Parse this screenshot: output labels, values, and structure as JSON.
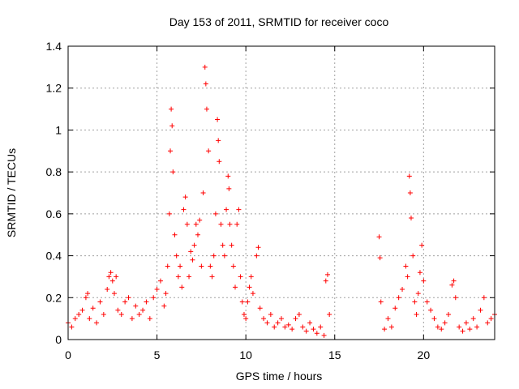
{
  "chart_data": {
    "type": "scatter",
    "title": "Day 153 of 2011, SRMTID for receiver coco",
    "xlabel": "GPS time / hours",
    "ylabel": "SRMTID / TECUs",
    "xlim": [
      0,
      24
    ],
    "ylim": [
      0,
      1.4
    ],
    "xticks": [
      0,
      5,
      10,
      15,
      20
    ],
    "xtick_labels": [
      "0",
      "5",
      "10",
      "15",
      "20"
    ],
    "yticks": [
      0,
      0.2,
      0.4,
      0.6,
      0.8,
      1,
      1.2,
      1.4
    ],
    "ytick_labels": [
      "0",
      "0.2",
      "0.4",
      "0.6",
      "0.8",
      "1",
      "1.2",
      "1.4"
    ],
    "grid": true,
    "marker": "plus",
    "color": "#ff0000",
    "series": [
      {
        "name": "SRMTID",
        "points": [
          [
            0.0,
            0.08
          ],
          [
            0.2,
            0.06
          ],
          [
            0.4,
            0.1
          ],
          [
            0.6,
            0.12
          ],
          [
            0.8,
            0.14
          ],
          [
            1.0,
            0.2
          ],
          [
            1.1,
            0.22
          ],
          [
            1.2,
            0.1
          ],
          [
            1.4,
            0.15
          ],
          [
            1.6,
            0.08
          ],
          [
            1.8,
            0.18
          ],
          [
            2.0,
            0.12
          ],
          [
            2.2,
            0.24
          ],
          [
            2.3,
            0.3
          ],
          [
            2.4,
            0.32
          ],
          [
            2.5,
            0.28
          ],
          [
            2.6,
            0.22
          ],
          [
            2.7,
            0.3
          ],
          [
            2.8,
            0.14
          ],
          [
            3.0,
            0.12
          ],
          [
            3.2,
            0.18
          ],
          [
            3.4,
            0.2
          ],
          [
            3.6,
            0.1
          ],
          [
            3.8,
            0.16
          ],
          [
            4.0,
            0.12
          ],
          [
            4.2,
            0.14
          ],
          [
            4.4,
            0.18
          ],
          [
            4.6,
            0.1
          ],
          [
            4.8,
            0.2
          ],
          [
            5.0,
            0.24
          ],
          [
            5.2,
            0.28
          ],
          [
            5.4,
            0.16
          ],
          [
            5.5,
            0.22
          ],
          [
            5.6,
            0.35
          ],
          [
            5.7,
            0.6
          ],
          [
            5.75,
            0.9
          ],
          [
            5.8,
            1.1
          ],
          [
            5.85,
            1.02
          ],
          [
            5.9,
            0.8
          ],
          [
            6.0,
            0.5
          ],
          [
            6.1,
            0.4
          ],
          [
            6.2,
            0.3
          ],
          [
            6.3,
            0.35
          ],
          [
            6.4,
            0.25
          ],
          [
            6.5,
            0.62
          ],
          [
            6.6,
            0.68
          ],
          [
            6.7,
            0.55
          ],
          [
            6.8,
            0.3
          ],
          [
            6.9,
            0.42
          ],
          [
            7.0,
            0.38
          ],
          [
            7.1,
            0.45
          ],
          [
            7.2,
            0.55
          ],
          [
            7.3,
            0.5
          ],
          [
            7.4,
            0.57
          ],
          [
            7.5,
            0.35
          ],
          [
            7.6,
            0.7
          ],
          [
            7.7,
            1.3
          ],
          [
            7.75,
            1.22
          ],
          [
            7.8,
            1.1
          ],
          [
            7.9,
            0.9
          ],
          [
            8.0,
            0.35
          ],
          [
            8.1,
            0.3
          ],
          [
            8.2,
            0.4
          ],
          [
            8.3,
            0.6
          ],
          [
            8.4,
            1.05
          ],
          [
            8.45,
            0.95
          ],
          [
            8.5,
            0.85
          ],
          [
            8.6,
            0.55
          ],
          [
            8.7,
            0.45
          ],
          [
            8.8,
            0.4
          ],
          [
            8.9,
            0.62
          ],
          [
            9.0,
            0.78
          ],
          [
            9.05,
            0.72
          ],
          [
            9.1,
            0.55
          ],
          [
            9.2,
            0.45
          ],
          [
            9.3,
            0.35
          ],
          [
            9.4,
            0.25
          ],
          [
            9.5,
            0.55
          ],
          [
            9.6,
            0.62
          ],
          [
            9.7,
            0.3
          ],
          [
            9.8,
            0.18
          ],
          [
            9.9,
            0.12
          ],
          [
            10.0,
            0.1
          ],
          [
            10.1,
            0.18
          ],
          [
            10.2,
            0.25
          ],
          [
            10.3,
            0.3
          ],
          [
            10.4,
            0.22
          ],
          [
            10.6,
            0.4
          ],
          [
            10.7,
            0.44
          ],
          [
            10.8,
            0.15
          ],
          [
            11.0,
            0.1
          ],
          [
            11.2,
            0.08
          ],
          [
            11.4,
            0.12
          ],
          [
            11.6,
            0.06
          ],
          [
            11.8,
            0.08
          ],
          [
            12.0,
            0.1
          ],
          [
            12.2,
            0.06
          ],
          [
            12.4,
            0.07
          ],
          [
            12.6,
            0.05
          ],
          [
            12.8,
            0.1
          ],
          [
            13.0,
            0.12
          ],
          [
            13.2,
            0.06
          ],
          [
            13.4,
            0.04
          ],
          [
            13.6,
            0.08
          ],
          [
            13.8,
            0.05
          ],
          [
            14.0,
            0.03
          ],
          [
            14.2,
            0.06
          ],
          [
            14.4,
            0.02
          ],
          [
            14.5,
            0.28
          ],
          [
            14.6,
            0.31
          ],
          [
            14.7,
            0.12
          ],
          [
            17.5,
            0.49
          ],
          [
            17.55,
            0.39
          ],
          [
            17.6,
            0.18
          ],
          [
            17.8,
            0.05
          ],
          [
            18.0,
            0.1
          ],
          [
            18.2,
            0.06
          ],
          [
            18.4,
            0.15
          ],
          [
            18.6,
            0.2
          ],
          [
            18.8,
            0.24
          ],
          [
            19.0,
            0.35
          ],
          [
            19.1,
            0.3
          ],
          [
            19.2,
            0.78
          ],
          [
            19.25,
            0.7
          ],
          [
            19.3,
            0.58
          ],
          [
            19.4,
            0.4
          ],
          [
            19.5,
            0.18
          ],
          [
            19.6,
            0.12
          ],
          [
            19.7,
            0.22
          ],
          [
            19.8,
            0.32
          ],
          [
            19.9,
            0.45
          ],
          [
            20.0,
            0.28
          ],
          [
            20.2,
            0.18
          ],
          [
            20.4,
            0.14
          ],
          [
            20.6,
            0.1
          ],
          [
            20.8,
            0.06
          ],
          [
            21.0,
            0.05
          ],
          [
            21.2,
            0.08
          ],
          [
            21.4,
            0.12
          ],
          [
            21.6,
            0.26
          ],
          [
            21.7,
            0.28
          ],
          [
            21.8,
            0.2
          ],
          [
            22.0,
            0.06
          ],
          [
            22.2,
            0.04
          ],
          [
            22.4,
            0.08
          ],
          [
            22.6,
            0.05
          ],
          [
            22.8,
            0.1
          ],
          [
            23.0,
            0.06
          ],
          [
            23.2,
            0.14
          ],
          [
            23.4,
            0.2
          ],
          [
            23.6,
            0.08
          ],
          [
            23.8,
            0.1
          ],
          [
            24.0,
            0.12
          ]
        ]
      }
    ]
  }
}
